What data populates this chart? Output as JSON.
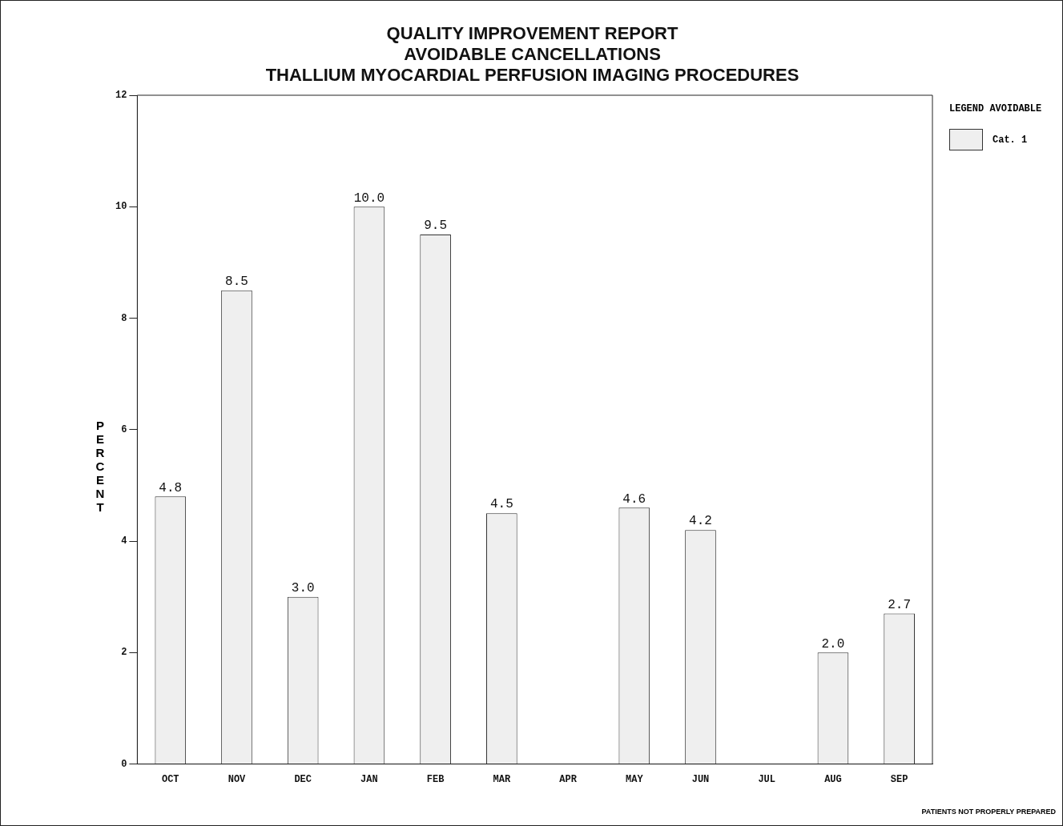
{
  "chart_data": {
    "type": "bar",
    "title": "QUALITY IMPROVEMENT REPORT\nAVOIDABLE CANCELLATIONS\nTHALLIUM MYOCARDIAL PERFUSION IMAGING PROCEDURES",
    "ylabel": "PERCENT",
    "legend_title": "LEGEND AVOIDABLE",
    "legend": "top right",
    "grid": false,
    "categories": [
      "OCT",
      "NOV",
      "DEC",
      "JAN",
      "FEB",
      "MAR",
      "APR",
      "MAY",
      "JUN",
      "JUL",
      "AUG",
      "SEP"
    ],
    "series": [
      {
        "name": "Cat. 1",
        "color": "#efefef",
        "values": [
          4.8,
          8.5,
          3.0,
          10.0,
          9.5,
          4.5,
          null,
          4.6,
          4.2,
          null,
          2.0,
          2.7
        ],
        "value_labels": [
          "4.8",
          "8.5",
          "3.0",
          "10.0",
          "9.5",
          "4.5",
          null,
          "4.6",
          "4.2",
          null,
          "2.0",
          "2.7"
        ]
      }
    ],
    "ylim": [
      0,
      12
    ],
    "yticks": [
      0,
      2,
      4,
      6,
      8,
      10,
      12
    ],
    "annotations": [
      "PATIENTS NOT PROPERLY PREPARED"
    ]
  }
}
